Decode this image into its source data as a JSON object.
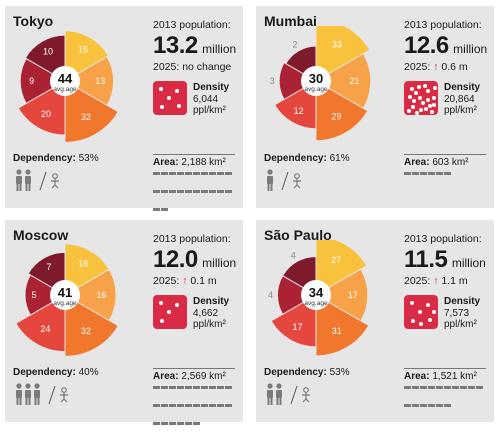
{
  "cities": [
    {
      "name": "Tokyo",
      "pop_label": "2013 population:",
      "pop_value": "13.2",
      "pop_unit": "million",
      "change_label": "2025:",
      "change_arrow": "",
      "change_text": "no change",
      "avg_age": "44",
      "avg_label": "avg.age",
      "density_title": "Density",
      "density_value": "6,044",
      "density_unit": "ppl/km²",
      "dependency_label": "Dependency:",
      "dependency_value": "53%",
      "area_label": "Area:",
      "area_value": "2,188 km²"
    },
    {
      "name": "Mumbai",
      "pop_label": "2013 population:",
      "pop_value": "12.6",
      "pop_unit": "million",
      "change_label": "2025:",
      "change_arrow": "↑",
      "change_text": "0.6 m",
      "avg_age": "30",
      "avg_label": "avg.age",
      "density_title": "Density",
      "density_value": "20,864",
      "density_unit": "ppl/km²",
      "dependency_label": "Dependency:",
      "dependency_value": "61%",
      "area_label": "Area:",
      "area_value": "603 km²"
    },
    {
      "name": "Moscow",
      "pop_label": "2013 population:",
      "pop_value": "12.0",
      "pop_unit": "million",
      "change_label": "2025:",
      "change_arrow": "↑",
      "change_text": "0.1 m",
      "avg_age": "41",
      "avg_label": "avg.age",
      "density_title": "Density",
      "density_value": "4,662",
      "density_unit": "ppl/km²",
      "dependency_label": "Dependency:",
      "dependency_value": "40%",
      "area_label": "Area:",
      "area_value": "2,569 km²"
    },
    {
      "name": "São Paulo",
      "pop_label": "2013 population:",
      "pop_value": "11.5",
      "pop_unit": "million",
      "change_label": "2025:",
      "change_arrow": "↑",
      "change_text": "1.1 m",
      "avg_age": "34",
      "avg_label": "avg.age",
      "density_title": "Density",
      "density_value": "7,573",
      "density_unit": "ppl/km²",
      "dependency_label": "Dependency:",
      "dependency_value": "53%",
      "area_label": "Area:",
      "area_value": "1,521 km²"
    }
  ],
  "chart_data": [
    {
      "type": "rose",
      "city": "Tokyo",
      "avg_age": 44,
      "segments": [
        15,
        13,
        32,
        20,
        9,
        10
      ],
      "segment_colors": [
        "#f9c23c",
        "#f7a148",
        "#f0772b",
        "#e5463d",
        "#aa2234",
        "#7e1a2c"
      ],
      "density_ppl_km2": 6044,
      "population_2013_m": 13.2,
      "dependency_pct": 53,
      "area_km2": 2188
    },
    {
      "type": "rose",
      "city": "Mumbai",
      "avg_age": 30,
      "segments": [
        33,
        21,
        29,
        12,
        3,
        2
      ],
      "segment_colors": [
        "#f9c23c",
        "#f7a148",
        "#f0772b",
        "#e5463d",
        "#aa2234",
        "#7e1a2c"
      ],
      "density_ppl_km2": 20864,
      "population_2013_m": 12.6,
      "dependency_pct": 61,
      "area_km2": 603
    },
    {
      "type": "rose",
      "city": "Moscow",
      "avg_age": 41,
      "segments": [
        16,
        16,
        32,
        24,
        5,
        7
      ],
      "segment_colors": [
        "#f9c23c",
        "#f7a148",
        "#f0772b",
        "#e5463d",
        "#aa2234",
        "#7e1a2c"
      ],
      "density_ppl_km2": 4662,
      "population_2013_m": 12.0,
      "dependency_pct": 40,
      "area_km2": 2569
    },
    {
      "type": "rose",
      "city": "São Paulo",
      "avg_age": 34,
      "segments": [
        27,
        17,
        31,
        17,
        4,
        4
      ],
      "segment_colors": [
        "#f9c23c",
        "#f7a148",
        "#f0772b",
        "#e5463d",
        "#aa2234",
        "#7e1a2c"
      ],
      "density_ppl_km2": 7573,
      "population_2013_m": 11.5,
      "dependency_pct": 53,
      "area_km2": 1521
    }
  ]
}
